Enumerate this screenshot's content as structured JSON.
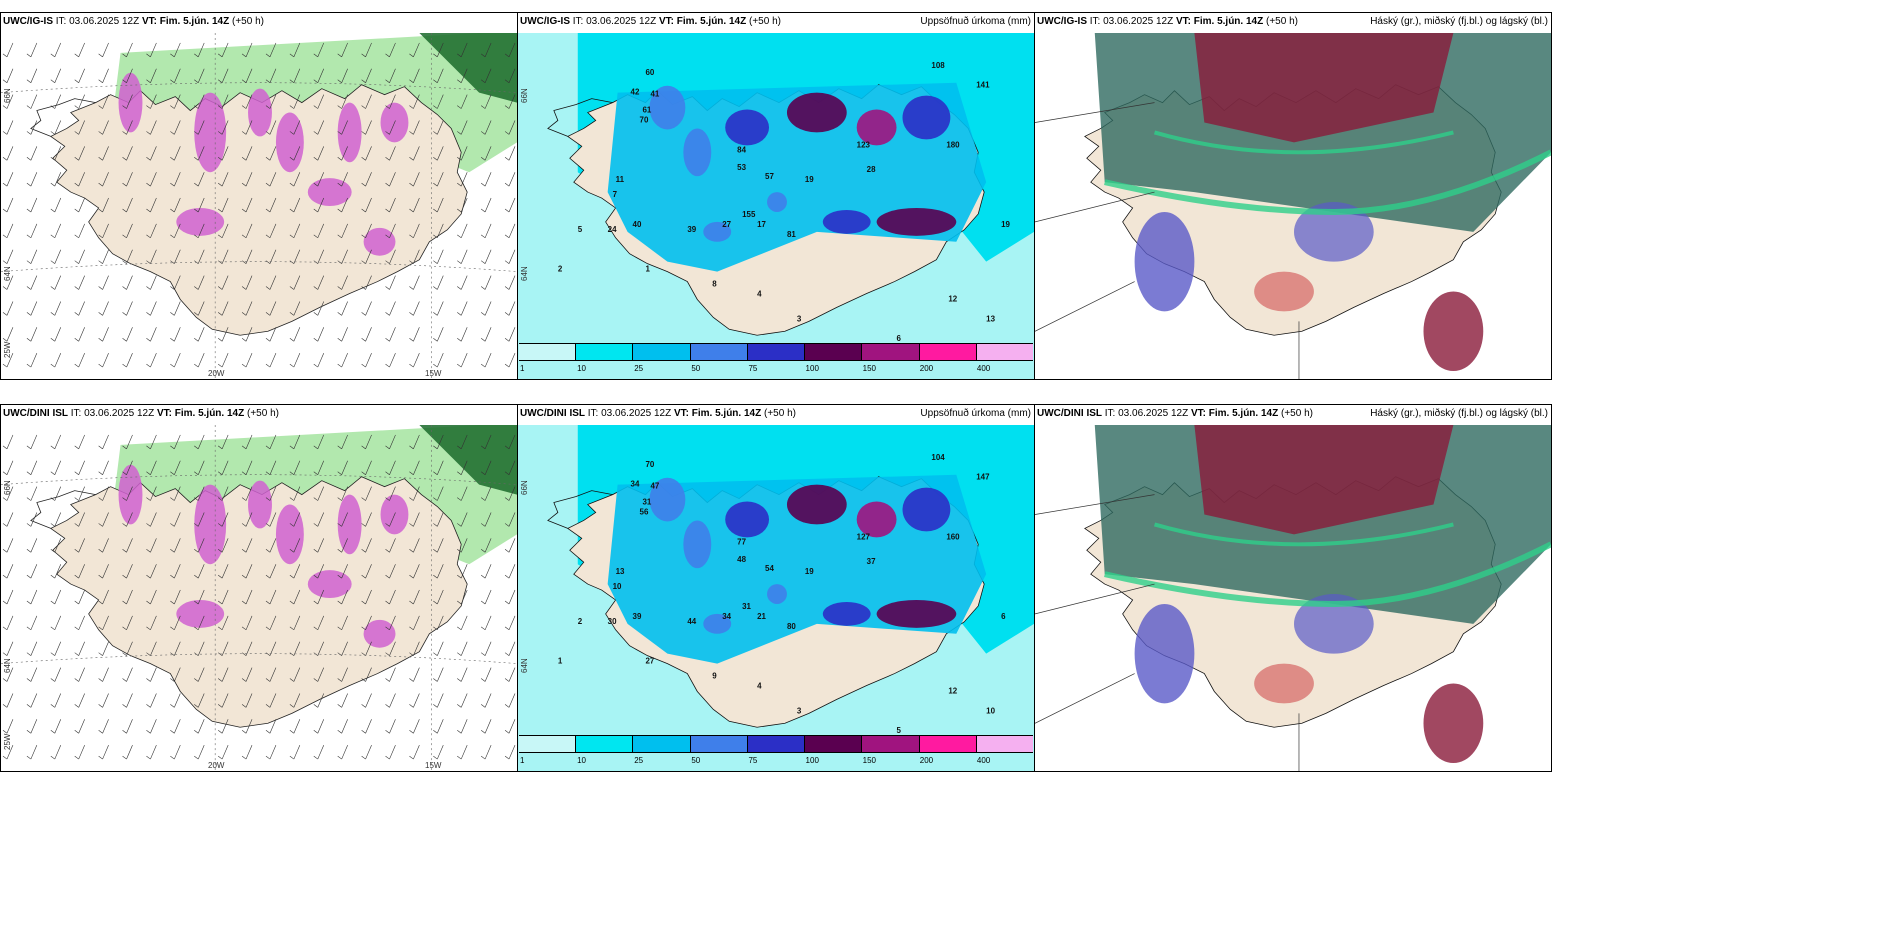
{
  "panels": [
    {
      "model": "UWC/IG-IS",
      "it": "IT: 03.06.2025 12Z",
      "vt_label": "VT:",
      "vt": "Fim. 5.jún. 14Z",
      "lead": "(+50 h)",
      "right": "",
      "type": "wind",
      "axes": {
        "y1": "66N",
        "y2": "64N",
        "y3": "25W",
        "x1": "20W",
        "x2": "15W"
      }
    },
    {
      "model": "UWC/IG-IS",
      "it": "IT: 03.06.2025 12Z",
      "vt_label": "VT:",
      "vt": "Fim. 5.jún. 14Z",
      "lead": "(+50 h)",
      "right": "Uppsöfnuð úrkoma (mm)",
      "type": "precip",
      "axes": {
        "y1": "66N",
        "y2": "64N"
      },
      "labels": [
        "42",
        "41",
        "61",
        "70",
        "57",
        "53",
        "19",
        "28",
        "11",
        "7",
        "5",
        "2",
        "1",
        "24",
        "40",
        "39",
        "27",
        "17",
        "12",
        "81",
        "8",
        "4",
        "3",
        "13",
        "6",
        "19",
        "108",
        "141",
        "84",
        "123",
        "180",
        "155",
        "60"
      ]
    },
    {
      "model": "UWC/IG-IS",
      "it": "IT: 03.06.2025 12Z",
      "vt_label": "VT:",
      "vt": "Fim. 5.jún. 14Z",
      "lead": "(+50 h)",
      "right": "Háský (gr.), miðský (fj.bl.) og lágský (bl.)",
      "type": "cloud"
    },
    {
      "model": "UWC/DINI ISL",
      "it": "IT: 03.06.2025 12Z",
      "vt_label": "VT:",
      "vt": "Fim. 5.jún. 14Z",
      "lead": "(+50 h)",
      "right": "",
      "type": "wind",
      "axes": {
        "y1": "66N",
        "y2": "64N",
        "y3": "25W",
        "x1": "20W",
        "x2": "15W"
      }
    },
    {
      "model": "UWC/DINI ISL",
      "it": "IT: 03.06.2025 12Z",
      "vt_label": "VT:",
      "vt": "Fim. 5.jún. 14Z",
      "lead": "(+50 h)",
      "right": "Uppsöfnuð úrkoma (mm)",
      "type": "precip",
      "axes": {
        "y1": "66N",
        "y2": "64N"
      },
      "labels": [
        "34",
        "47",
        "31",
        "56",
        "54",
        "48",
        "19",
        "37",
        "13",
        "10",
        "2",
        "1",
        "27",
        "30",
        "39",
        "44",
        "34",
        "21",
        "12",
        "80",
        "9",
        "4",
        "3",
        "10",
        "5",
        "6",
        "104",
        "147",
        "77",
        "127",
        "160",
        "31",
        "70"
      ]
    },
    {
      "model": "UWC/DINI ISL",
      "it": "IT: 03.06.2025 12Z",
      "vt_label": "VT:",
      "vt": "Fim. 5.jún. 14Z",
      "lead": "(+50 h)",
      "right": "Háský (gr.), miðský (fj.bl.) og lágský (bl.)",
      "type": "cloud"
    }
  ],
  "colorbar": {
    "ticks": [
      "1",
      "10",
      "25",
      "50",
      "75",
      "100",
      "150",
      "200",
      "400"
    ],
    "colors": [
      "#c8f7f7",
      "#00e6f0",
      "#00bfee",
      "#3f7fea",
      "#2b2fc6",
      "#5a0050",
      "#a0147f",
      "#ff1aa0",
      "#f5b0f0"
    ]
  },
  "colors": {
    "land": "#f2e6d6",
    "precip_light": "#a8f4f4",
    "sea_precip": "#00e0f0",
    "wind_green": "#9fe29a",
    "wind_dark": "#1a6a2a",
    "wind_magenta": "#d060d0",
    "cloud_red": "#8a1a3a",
    "cloud_teal": "#2f6a60",
    "cloud_blue": "#5a5ac8",
    "cloud_green": "#2ed08a"
  }
}
